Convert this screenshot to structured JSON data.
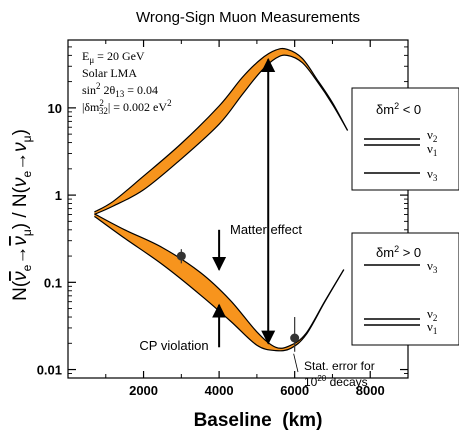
{
  "chart_data": {
    "type": "line",
    "title": "Wrong-Sign Muon Measurements",
    "xlabel": "Baseline  (km)",
    "ylabel": "N(ν̄e → ν̄μ) / N(νe → νμ)",
    "ylabel_parts": {
      "n1": "N(",
      "nue_bar": "ν",
      "e_sub": "e",
      "arrow1": "→",
      "numu_bar": "ν",
      "mu_sub": "μ",
      "mid": ") / N(",
      "nue": "ν",
      "e_sub2": "e",
      "arrow2": "→",
      "numu": "ν",
      "mu_sub2": "μ",
      "close": ")"
    },
    "xlim": [
      0,
      9000
    ],
    "ylim": [
      0.008,
      60
    ],
    "yscale": "log",
    "x_ticks": [
      2000,
      4000,
      6000,
      8000
    ],
    "x_tick_labels": [
      "2000",
      "4000",
      "6000",
      "8000"
    ],
    "y_ticks": [
      0.01,
      0.1,
      1,
      10
    ],
    "y_tick_labels": [
      "0.01",
      "0.1",
      "1",
      "10"
    ],
    "params": {
      "e_mu": {
        "main": "E",
        "sub": "μ",
        "rest": " = 20 GeV"
      },
      "solar": "Solar LMA",
      "theta": {
        "pre": "sin",
        "sup": "2",
        "mid": " 2θ",
        "sub": "13",
        "rest": " = 0.04"
      },
      "dm": {
        "pre": "|δm",
        "sup": "2",
        "sub": "32",
        "rest": "| = 0.002 eV",
        "sup2": "2"
      }
    },
    "series": [
      {
        "band": "upper",
        "x": [
          700,
          1200,
          2000,
          3000,
          4000,
          4600,
          5100,
          5500,
          5800,
          6200,
          6600,
          7000,
          7400
        ],
        "low": [
          0.6,
          0.75,
          1.15,
          2.6,
          6.5,
          14,
          26,
          37,
          40,
          33,
          20,
          11,
          5.5
        ],
        "high": [
          0.64,
          0.85,
          1.65,
          3.9,
          10.5,
          22,
          36,
          46,
          47,
          37,
          21,
          11.5,
          5.5
        ]
      },
      {
        "band": "lower",
        "x": [
          700,
          1500,
          2500,
          3500,
          4300,
          5000,
          5500,
          5900,
          6300,
          6800,
          7300
        ],
        "low": [
          0.57,
          0.32,
          0.16,
          0.072,
          0.036,
          0.019,
          0.0165,
          0.0175,
          0.025,
          0.06,
          0.14
        ],
        "high": [
          0.61,
          0.4,
          0.25,
          0.13,
          0.062,
          0.027,
          0.018,
          0.019,
          0.026,
          0.061,
          0.14
        ]
      }
    ],
    "points": [
      {
        "x": 3000,
        "y": 0.2,
        "err_low": 0.165,
        "err_high": 0.24
      },
      {
        "x": 6000,
        "y": 0.023,
        "err_low": 0.016,
        "err_high": 0.04
      }
    ],
    "annotations": {
      "matter_effect": "Matter effect",
      "cp_violation": "CP violation",
      "stat_error_line1": "Stat. error for",
      "stat_error_line2_base": "10",
      "stat_error_line2_sup": "20",
      "stat_error_line2_rest": " decays",
      "matter_arrow_x": 5300,
      "matter_arrow_y": [
        40,
        0.018
      ],
      "cp_arrow_down": {
        "x": 4000,
        "y_from": 0.4,
        "y_to": 0.14
      },
      "cp_arrow_up": {
        "x": 4000,
        "y_from": 0.018,
        "y_to": 0.055
      }
    },
    "hierarchy_boxes": {
      "inverted": {
        "label": {
          "pre": "δm",
          "sup": "2",
          "rest": " < 0"
        },
        "levels": [
          {
            "name": "ν",
            "sub": "2"
          },
          {
            "name": "ν",
            "sub": "1"
          },
          {
            "name": "ν",
            "sub": "3"
          }
        ]
      },
      "normal": {
        "label": {
          "pre": "δm",
          "sup": "2",
          "rest": " > 0"
        },
        "levels": [
          {
            "name": "ν",
            "sub": "3"
          },
          {
            "name": "ν",
            "sub": "2"
          },
          {
            "name": "ν",
            "sub": "1"
          }
        ]
      }
    },
    "colors": {
      "band_fill": "#f7941d",
      "line": "#000000",
      "point": "#333333"
    },
    "grid": false
  }
}
